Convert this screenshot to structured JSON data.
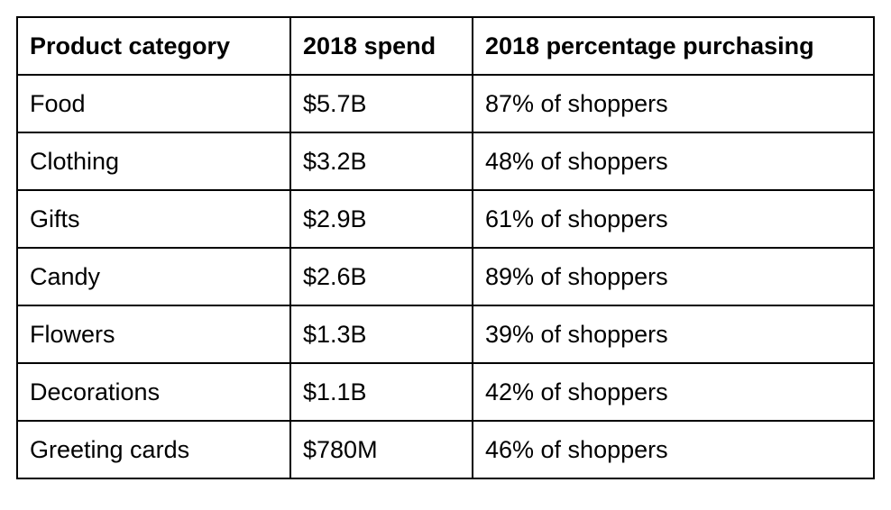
{
  "table": {
    "headers": [
      "Product category",
      "2018 spend",
      "2018 percentage purchasing"
    ],
    "rows": [
      [
        "Food",
        "$5.7B",
        "87% of shoppers"
      ],
      [
        "Clothing",
        "$3.2B",
        "48% of shoppers"
      ],
      [
        "Gifts",
        "$2.9B",
        "61% of shoppers"
      ],
      [
        "Candy",
        "$2.6B",
        "89% of shoppers"
      ],
      [
        "Flowers",
        "$1.3B",
        "39% of shoppers"
      ],
      [
        "Decorations",
        "$1.1B",
        "42% of shoppers"
      ],
      [
        "Greeting cards",
        "$780M",
        "46% of shoppers"
      ]
    ]
  }
}
